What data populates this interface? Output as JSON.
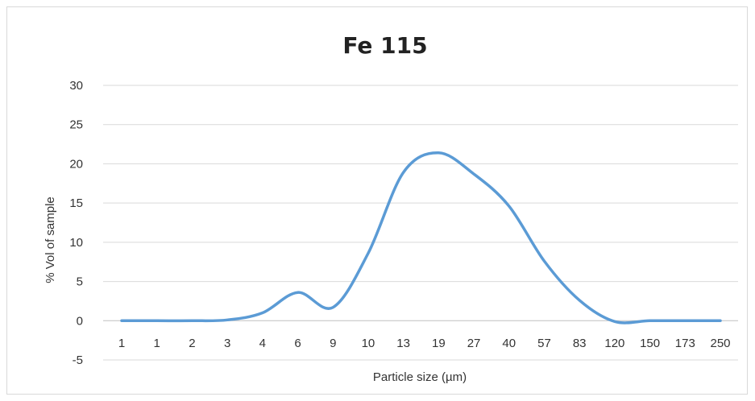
{
  "chart_data": {
    "type": "line",
    "title": "Fe 115",
    "xlabel": "Particle size (µm)",
    "ylabel": "% Vol of sample",
    "ylim": [
      -5,
      30
    ],
    "yticks": [
      -5,
      0,
      5,
      10,
      15,
      20,
      25,
      30
    ],
    "grid": true,
    "legend": "none",
    "categories": [
      "1",
      "1",
      "2",
      "3",
      "4",
      "6",
      "9",
      "10",
      "13",
      "19",
      "27",
      "40",
      "57",
      "83",
      "120",
      "150",
      "173",
      "250"
    ],
    "series": [
      {
        "color": "#5b9bd5",
        "values": [
          0,
          0,
          0,
          0.1,
          1.0,
          3.6,
          1.7,
          8.6,
          18.9,
          21.4,
          18.7,
          14.6,
          7.6,
          2.6,
          -0.1,
          0,
          0,
          0
        ]
      }
    ]
  }
}
